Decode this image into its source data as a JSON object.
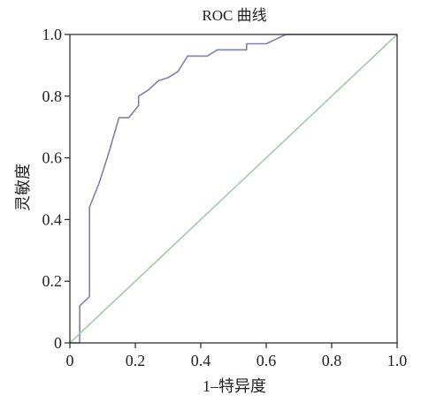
{
  "chart_data": {
    "type": "line",
    "title": "ROC 曲线",
    "xlabel": "1–特异度",
    "ylabel": "灵敏度",
    "xlim": [
      0,
      1
    ],
    "ylim": [
      0,
      1
    ],
    "x_ticks": [
      "0",
      "0.2",
      "0.4",
      "0.6",
      "0.8",
      "1.0"
    ],
    "y_ticks": [
      "0",
      "0.2",
      "0.4",
      "0.6",
      "0.8",
      "1.0"
    ],
    "grid": false,
    "legend": "none",
    "series": [
      {
        "color": "#7f7fb3",
        "points": [
          [
            0.0,
            0.0
          ],
          [
            0.03,
            0.0
          ],
          [
            0.03,
            0.12
          ],
          [
            0.06,
            0.15
          ],
          [
            0.06,
            0.44
          ],
          [
            0.09,
            0.52
          ],
          [
            0.12,
            0.62
          ],
          [
            0.15,
            0.73
          ],
          [
            0.18,
            0.73
          ],
          [
            0.21,
            0.77
          ],
          [
            0.21,
            0.8
          ],
          [
            0.24,
            0.82
          ],
          [
            0.27,
            0.85
          ],
          [
            0.3,
            0.86
          ],
          [
            0.33,
            0.88
          ],
          [
            0.36,
            0.93
          ],
          [
            0.42,
            0.93
          ],
          [
            0.45,
            0.95
          ],
          [
            0.54,
            0.95
          ],
          [
            0.54,
            0.97
          ],
          [
            0.6,
            0.97
          ],
          [
            0.66,
            1.0
          ],
          [
            1.0,
            1.0
          ]
        ]
      },
      {
        "color": "#9fcf9f",
        "points": [
          [
            0,
            0
          ],
          [
            1,
            1
          ]
        ]
      }
    ]
  }
}
